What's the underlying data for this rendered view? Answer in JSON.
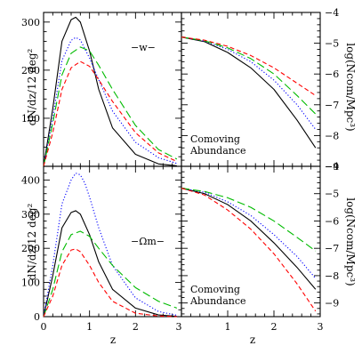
{
  "chart_data": [
    {
      "panel": "top-left",
      "type": "line",
      "ylabel": "dN/dz/12 deg²",
      "ylim": [
        0,
        320
      ],
      "xlim": [
        0,
        3
      ],
      "yticks": [
        100,
        200,
        300
      ],
      "annotation": "−w−",
      "series": [
        {
          "color": "#000000",
          "style": "solid",
          "x": [
            0,
            0.2,
            0.4,
            0.6,
            0.7,
            0.8,
            1.0,
            1.2,
            1.5,
            2.0,
            2.5,
            2.9
          ],
          "y": [
            0,
            120,
            260,
            305,
            310,
            300,
            240,
            160,
            80,
            25,
            5,
            1
          ]
        },
        {
          "color": "#0000ff",
          "style": "dotted",
          "x": [
            0,
            0.2,
            0.4,
            0.6,
            0.7,
            0.8,
            1.0,
            1.2,
            1.5,
            2.0,
            2.5,
            2.9
          ],
          "y": [
            0,
            100,
            220,
            262,
            268,
            263,
            225,
            180,
            115,
            50,
            18,
            6
          ]
        },
        {
          "color": "#00bb00",
          "style": "long-dash",
          "x": [
            0,
            0.2,
            0.4,
            0.6,
            0.8,
            1.0,
            1.2,
            1.5,
            2.0,
            2.5,
            2.9
          ],
          "y": [
            0,
            90,
            190,
            235,
            248,
            240,
            210,
            160,
            85,
            35,
            15
          ]
        },
        {
          "color": "#ff0000",
          "style": "dashed",
          "x": [
            0,
            0.2,
            0.4,
            0.6,
            0.8,
            1.0,
            1.2,
            1.5,
            2.0,
            2.5,
            2.9
          ],
          "y": [
            0,
            70,
            160,
            205,
            218,
            208,
            180,
            135,
            70,
            28,
            10
          ]
        }
      ]
    },
    {
      "panel": "top-right",
      "type": "line",
      "ylabel": "log(Ncom/Mpc³)",
      "ylim": [
        -9,
        -4
      ],
      "xlim": [
        0,
        3
      ],
      "yticks": [
        -4,
        -5,
        -6,
        -7,
        -8,
        -9
      ],
      "annotation": [
        "Comoving",
        "Abundance"
      ],
      "series": [
        {
          "color": "#000000",
          "style": "solid",
          "x": [
            0,
            0.5,
            1.0,
            1.5,
            2.0,
            2.5,
            2.9
          ],
          "y": [
            -4.8,
            -4.95,
            -5.3,
            -5.8,
            -6.5,
            -7.5,
            -8.4
          ]
        },
        {
          "color": "#0000ff",
          "style": "dotted",
          "x": [
            0,
            0.5,
            1.0,
            1.5,
            2.0,
            2.5,
            2.9
          ],
          "y": [
            -4.8,
            -4.93,
            -5.2,
            -5.6,
            -6.2,
            -7.0,
            -7.8
          ]
        },
        {
          "color": "#00bb00",
          "style": "long-dash",
          "x": [
            0,
            0.5,
            1.0,
            1.5,
            2.0,
            2.5,
            2.9
          ],
          "y": [
            -4.8,
            -4.92,
            -5.15,
            -5.5,
            -6.0,
            -6.7,
            -7.3
          ]
        },
        {
          "color": "#ff0000",
          "style": "dashed",
          "x": [
            0,
            0.5,
            1.0,
            1.5,
            2.0,
            2.5,
            2.9
          ],
          "y": [
            -4.8,
            -4.9,
            -5.1,
            -5.4,
            -5.8,
            -6.3,
            -6.7
          ]
        }
      ]
    },
    {
      "panel": "bottom-left",
      "type": "line",
      "ylabel": "dN/dz/12 deg²",
      "xlabel": "z",
      "ylim": [
        0,
        440
      ],
      "xlim": [
        0,
        3
      ],
      "xticks": [
        0,
        1,
        2,
        3
      ],
      "yticks": [
        0,
        100,
        200,
        300,
        400
      ],
      "annotation": "−Ωm−",
      "series": [
        {
          "color": "#000000",
          "style": "solid",
          "x": [
            0,
            0.2,
            0.4,
            0.6,
            0.7,
            0.8,
            1.0,
            1.2,
            1.5,
            2.0,
            2.5,
            2.9
          ],
          "y": [
            0,
            120,
            260,
            305,
            310,
            300,
            240,
            160,
            80,
            25,
            5,
            1
          ]
        },
        {
          "color": "#0000ff",
          "style": "dotted",
          "x": [
            0,
            0.2,
            0.4,
            0.6,
            0.7,
            0.8,
            0.9,
            1.0,
            1.2,
            1.5,
            2.0,
            2.5,
            2.9
          ],
          "y": [
            0,
            150,
            330,
            400,
            420,
            415,
            390,
            350,
            260,
            150,
            55,
            15,
            4
          ]
        },
        {
          "color": "#00bb00",
          "style": "long-dash",
          "x": [
            0,
            0.2,
            0.4,
            0.6,
            0.8,
            1.0,
            1.2,
            1.5,
            2.0,
            2.5,
            2.9
          ],
          "y": [
            0,
            80,
            190,
            240,
            250,
            235,
            200,
            150,
            85,
            45,
            25
          ]
        },
        {
          "color": "#ff0000",
          "style": "dashed",
          "x": [
            0,
            0.2,
            0.4,
            0.6,
            0.7,
            0.8,
            1.0,
            1.2,
            1.5,
            2.0,
            2.5,
            2.9
          ],
          "y": [
            0,
            60,
            150,
            195,
            198,
            190,
            150,
            100,
            45,
            10,
            2,
            0
          ]
        }
      ]
    },
    {
      "panel": "bottom-right",
      "type": "line",
      "ylabel": "log(Ncom/Mpc³)",
      "xlabel": "z",
      "ylim": [
        -9.5,
        -4
      ],
      "xlim": [
        0,
        3
      ],
      "xticks": [
        1,
        2,
        3
      ],
      "yticks": [
        -4,
        -5,
        -6,
        -7,
        -8,
        -9
      ],
      "annotation": [
        "Comoving",
        "Abundance"
      ],
      "series": [
        {
          "color": "#000000",
          "style": "solid",
          "x": [
            0,
            0.5,
            1.0,
            1.5,
            2.0,
            2.5,
            2.9
          ],
          "y": [
            -4.8,
            -5.0,
            -5.4,
            -6.0,
            -6.8,
            -7.7,
            -8.5
          ]
        },
        {
          "color": "#0000ff",
          "style": "dotted",
          "x": [
            0,
            0.5,
            1.0,
            1.5,
            2.0,
            2.5,
            2.9
          ],
          "y": [
            -4.8,
            -4.95,
            -5.3,
            -5.8,
            -6.5,
            -7.3,
            -8.1
          ]
        },
        {
          "color": "#00bb00",
          "style": "long-dash",
          "x": [
            0,
            0.5,
            1.0,
            1.5,
            2.0,
            2.5,
            2.9
          ],
          "y": [
            -4.8,
            -4.92,
            -5.15,
            -5.5,
            -6.0,
            -6.6,
            -7.1
          ]
        },
        {
          "color": "#ff0000",
          "style": "dashed",
          "x": [
            0,
            0.5,
            1.0,
            1.5,
            2.0,
            2.5,
            2.9
          ],
          "y": [
            -4.8,
            -5.05,
            -5.6,
            -6.3,
            -7.2,
            -8.3,
            -9.3
          ]
        }
      ]
    }
  ]
}
